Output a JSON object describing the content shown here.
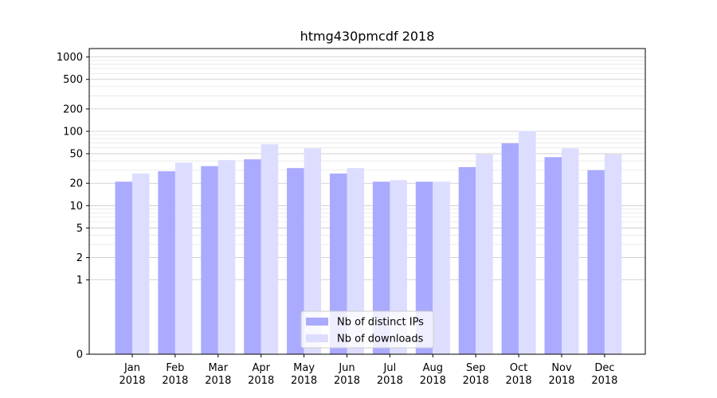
{
  "chart_data": {
    "type": "bar",
    "title": "htmg430pmcdf 2018",
    "xlabel": "",
    "ylabel": "",
    "yscale": "symlog",
    "ylim": [
      0,
      1300
    ],
    "yticks": [
      0,
      1,
      2,
      5,
      10,
      20,
      50,
      100,
      200,
      500,
      1000
    ],
    "grid": true,
    "legend_position": "bottom-center",
    "categories": [
      "Jan\n2018",
      "Feb\n2018",
      "Mar\n2018",
      "Apr\n2018",
      "May\n2018",
      "Jun\n2018",
      "Jul\n2018",
      "Aug\n2018",
      "Sep\n2018",
      "Oct\n2018",
      "Nov\n2018",
      "Dec\n2018"
    ],
    "series": [
      {
        "name": "Nb of distinct IPs",
        "color": "#aaaaff",
        "values": [
          21,
          29,
          34,
          42,
          32,
          27,
          21,
          21,
          33,
          69,
          45,
          30
        ]
      },
      {
        "name": "Nb of downloads",
        "color": "#ddddff",
        "values": [
          27,
          38,
          41,
          67,
          59,
          32,
          22,
          21,
          49,
          101,
          59,
          49
        ]
      }
    ]
  }
}
